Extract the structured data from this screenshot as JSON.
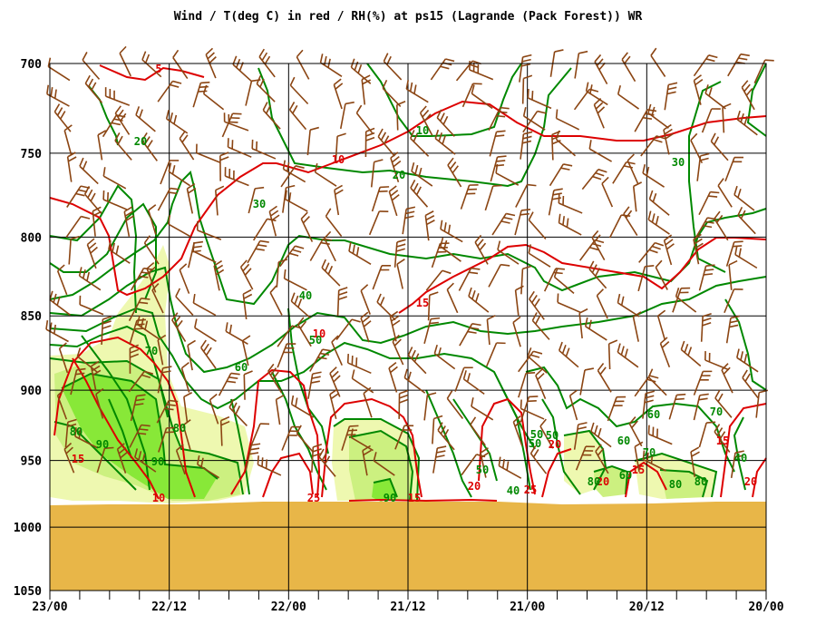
{
  "chart_data": {
    "type": "contour",
    "title": "Wind / T(deg C) in red / RH(%) at ps15 (Lagrande (Pack Forest))  WR",
    "x_ticks": [
      "23/00",
      "22/12",
      "22/00",
      "21/12",
      "21/00",
      "20/12",
      "20/00"
    ],
    "y_ticks": [
      700,
      750,
      800,
      850,
      900,
      950,
      1000,
      1050
    ],
    "ylim": [
      700,
      1050
    ],
    "y_axis": "pressure (hPa), log scale, inverted",
    "x_direction": "time decreasing to the right",
    "grid": true,
    "colors": {
      "temperature": "#dd0000",
      "rh": "#008800",
      "wind": "#8b4513",
      "ground": "#e8b648",
      "rh70": "#eef8b0",
      "rh80": "#ccf080",
      "rh90": "#88e838"
    },
    "temperature_labels": [
      "5",
      "10",
      "15",
      "10",
      "15",
      "20",
      "20",
      "25",
      "20",
      "15",
      "15",
      "20",
      "25",
      "10",
      "15"
    ],
    "rh_labels": [
      "20",
      "10",
      "20",
      "30",
      "30",
      "40",
      "50",
      "70",
      "60",
      "80",
      "80",
      "90",
      "90",
      "70",
      "50",
      "50",
      "40",
      "50",
      "60",
      "60",
      "70",
      "80",
      "80",
      "80",
      "60",
      "50",
      "40",
      "90"
    ]
  }
}
